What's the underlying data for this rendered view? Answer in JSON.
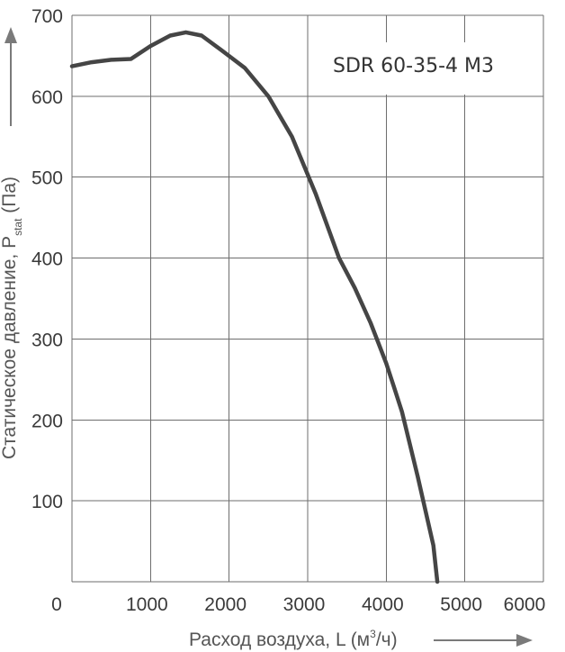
{
  "chart_data": {
    "type": "line",
    "title": "SDR 60-35-4 M3",
    "xlabel_text": "Расход воздуха, L (м",
    "xlabel_sup": "3",
    "xlabel_end": "/ч)",
    "ylabel_text": "Статическое давление, P",
    "ylabel_sub": "stat",
    "ylabel_end": " (Па)",
    "xlim": [
      0,
      6000
    ],
    "ylim": [
      0,
      700
    ],
    "x_ticks": [
      0,
      1000,
      2000,
      3000,
      4000,
      5000,
      6000
    ],
    "x_tick_labels": [
      "0",
      "1000",
      "2000",
      "3000",
      "4000",
      "5000",
      "6000"
    ],
    "y_ticks": [
      100,
      200,
      300,
      400,
      500,
      600,
      700
    ],
    "y_tick_labels": [
      "100",
      "200",
      "300",
      "400",
      "500",
      "600",
      "700"
    ],
    "grid": true,
    "series": [
      {
        "color": "#454545",
        "x": [
          0,
          250,
          500,
          750,
          1000,
          1250,
          1450,
          1650,
          1900,
          2200,
          2500,
          2800,
          3100,
          3400,
          3600,
          3800,
          4000,
          4100,
          4200,
          4400,
          4600,
          4650
        ],
        "y": [
          637,
          642,
          645,
          646,
          662,
          675,
          679,
          675,
          657,
          635,
          600,
          550,
          480,
          400,
          363,
          320,
          270,
          240,
          210,
          130,
          45,
          0
        ]
      }
    ]
  }
}
